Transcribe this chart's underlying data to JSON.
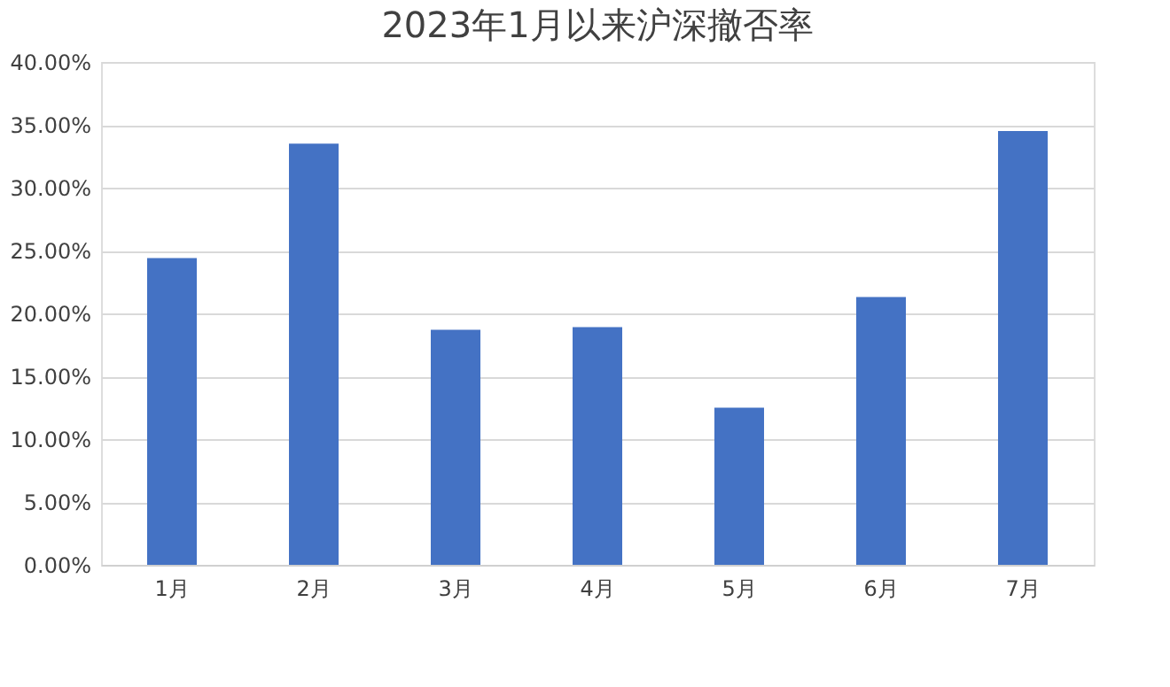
{
  "chart_data": {
    "type": "bar",
    "title": "2023年1月以来沪深撤否率",
    "categories": [
      "1月",
      "2月",
      "3月",
      "4月",
      "5月",
      "6月",
      "7月"
    ],
    "values": [
      24.4,
      33.5,
      18.7,
      18.9,
      12.5,
      21.3,
      34.5
    ],
    "color": "#4472c4",
    "ylim": [
      0,
      40
    ],
    "yticks": [
      {
        "value": 0,
        "label": "0.00%"
      },
      {
        "value": 5,
        "label": "5.00%"
      },
      {
        "value": 10,
        "label": "10.00%"
      },
      {
        "value": 15,
        "label": "15.00%"
      },
      {
        "value": 20,
        "label": "20.00%"
      },
      {
        "value": 25,
        "label": "25.00%"
      },
      {
        "value": 30,
        "label": "30.00%"
      },
      {
        "value": 35,
        "label": "35.00%"
      },
      {
        "value": 40,
        "label": "40.00%"
      }
    ],
    "grid": "y"
  }
}
